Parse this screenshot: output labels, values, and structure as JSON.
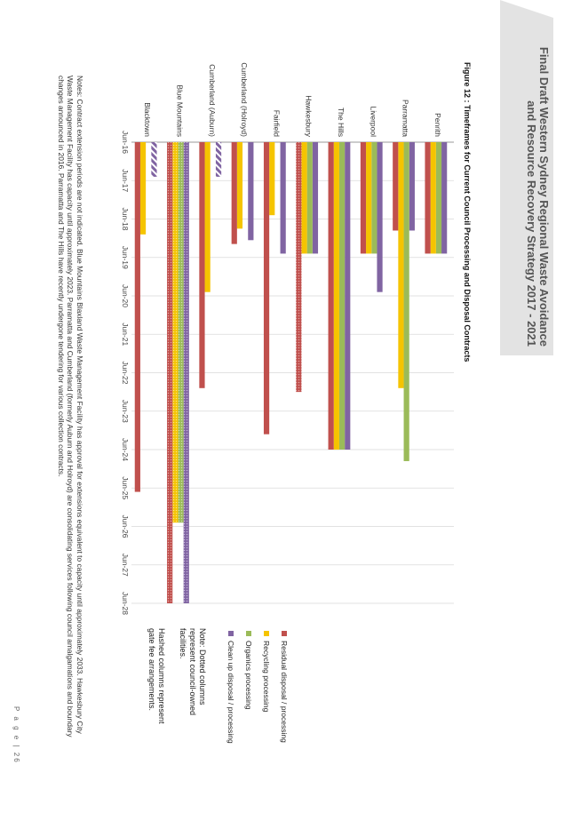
{
  "header": {
    "title_line1": "Final Draft Western Sydney Regional Waste Avoidance",
    "title_line2": "and Resource Recovery Strategy 2017 - 2021"
  },
  "figure": {
    "title": "Figure 12 : Timeframes for Current Council Processing and Disposal Contracts"
  },
  "legend": {
    "residual": "Residual disposal / processing",
    "recycling": "Recycling processing",
    "organics": "Organics processing",
    "cleanup": "Clean up disposal / processing"
  },
  "notes_in_chart": {
    "dotted": "Note: Dotted columns represent council-owned facilities.",
    "hashed": "Hashed columns represent gate fee arrangements."
  },
  "footnote": "Notes: Contract extension periods are not indicated. Blue Mountains Blaxland Waste Management Facility has approval for extensions equivalent to capacity until approximately 2033. Hawkesbury City Waste Management Facility has capacity until approximately 2023. Parramatta and Cumberland (formerly Auburn and Holroyd) are consolidating services following council amalgamations and boundary changes announced in 2016. Parramatta and The Hills have recently undergone tendering for various collection contracts.",
  "page": {
    "label": "P a g e",
    "number": "| 26"
  },
  "colors": {
    "residual": "#c0504d",
    "recycling": "#f5c400",
    "organics": "#9bbb59",
    "cleanup": "#8064a2",
    "grid": "#d9d9d9",
    "axis": "#999999"
  },
  "chart_data": {
    "type": "bar",
    "orientation": "horizontal-timeline",
    "title": "Timeframes for Current Council Processing and Disposal Contracts",
    "x_unit": "years since Jun-16",
    "xlim": [
      0,
      12
    ],
    "tick_labels": [
      "Jun-16",
      "Jun-17",
      "Jun-18",
      "Jun-19",
      "Jun-20",
      "Jun-21",
      "Jun-22",
      "Jun-23",
      "Jun-24",
      "Jun-25",
      "Jun-26",
      "Jun-27",
      "Jun-28"
    ],
    "categories": [
      "Penrith",
      "Parramatta",
      "Liverpool",
      "The Hills",
      "Hawkesbury",
      "Fairfield",
      "Cumberland (Holroyd)",
      "Cumberland (Auburn)",
      "Blue Mountains",
      "Blacktown"
    ],
    "series": [
      {
        "name": "Clean up disposal / processing",
        "key": "cleanup",
        "values": [
          2.9,
          2.3,
          3.9,
          8.0,
          2.9,
          2.9,
          2.55,
          0.9,
          12.0,
          0.9
        ]
      },
      {
        "name": "Organics processing",
        "key": "organics",
        "values": [
          2.9,
          8.3,
          2.9,
          8.0,
          2.9,
          0,
          0,
          0,
          9.9,
          0
        ]
      },
      {
        "name": "Recycling processing",
        "key": "recycling",
        "values": [
          2.9,
          6.4,
          2.9,
          8.0,
          2.9,
          1.9,
          2.25,
          3.9,
          9.9,
          2.4
        ]
      },
      {
        "name": "Residual disposal / processing",
        "key": "residual",
        "values": [
          2.9,
          2.3,
          2.9,
          8.0,
          6.5,
          7.6,
          2.65,
          6.4,
          12.0,
          9.1
        ]
      }
    ],
    "styles": {
      "Blue Mountains": "dotted",
      "Hawkesbury.residual": "dotted",
      "Cumberland (Auburn).cleanup": "hashed",
      "Blacktown.cleanup": "hashed"
    }
  }
}
